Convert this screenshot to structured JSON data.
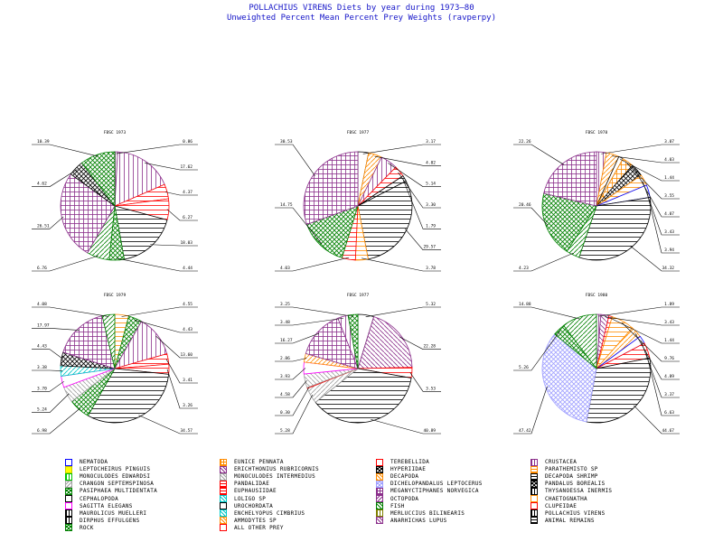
{
  "title": {
    "line1": "POLLACHIUS VIRENS Diets by year during 1973—80",
    "line2": "Unweighted Percent Mean Percent Prey Weights (ravperpy)"
  },
  "chart_data": [
    {
      "type": "pie",
      "title": "FBSC 1973",
      "slices": [
        {
          "category": "CRUSTACEA",
          "value": 0.86
        },
        {
          "category": "CRUSTACEA",
          "value": 17.62
        },
        {
          "category": "EUPHAUSIIDAE",
          "value": 4.37
        },
        {
          "category": "PANDALIDAE",
          "value": 6.27
        },
        {
          "category": "ANIMAL REMAINS",
          "value": 18.03
        },
        {
          "category": "ROCK",
          "value": 4.44
        },
        {
          "category": "FISH",
          "value": 6.76
        },
        {
          "category": "MEGANYCTIPHANES NORVEGICA",
          "value": 26.51
        },
        {
          "category": "PANDALUS BOREALIS",
          "value": 4.62
        },
        {
          "category": "PASIPHAEA MULTIDENTATA",
          "value": 10.39
        }
      ]
    },
    {
      "type": "pie",
      "title": "FBSC 1977",
      "slices": [
        {
          "category": "CEPHALOPODA",
          "value": 3.17
        },
        {
          "category": "DECAPODA",
          "value": 4.02
        },
        {
          "category": "CRUSTACEA",
          "value": 5.14
        },
        {
          "category": "EUPHAUSIIDAE",
          "value": 3.3
        },
        {
          "category": "DECAPODA SHRIMP",
          "value": 1.79
        },
        {
          "category": "ANIMAL REMAINS",
          "value": 29.57
        },
        {
          "category": "PARATHEMISTO SP",
          "value": 3.78
        },
        {
          "category": "PANDALIDAE",
          "value": 4.03
        },
        {
          "category": "PASIPHAEA MULTIDENTATA",
          "value": 14.75
        },
        {
          "category": "MEGANYCTIPHANES NORVEGICA",
          "value": 30.53
        }
      ]
    },
    {
      "type": "pie",
      "title": "FBSC 1978",
      "slices": [
        {
          "category": "CRUSTACEA",
          "value": 3.07
        },
        {
          "category": "DECAPODA",
          "value": 4.03
        },
        {
          "category": "CEPHALOPODA",
          "value": 1.44
        },
        {
          "category": "EUNICE PENNATA",
          "value": 3.55
        },
        {
          "category": "PANDALUS BOREALIS",
          "value": 4.07
        },
        {
          "category": "PARATHEMISTO SP",
          "value": 3.43
        },
        {
          "category": "NEMATODA",
          "value": 3.94
        },
        {
          "category": "ANIMAL REMAINS",
          "value": 34.32
        },
        {
          "category": "FISH",
          "value": 4.23
        },
        {
          "category": "PASIPHAEA MULTIDENTATA",
          "value": 20.46
        },
        {
          "category": "MEGANYCTIPHANES NORVEGICA",
          "value": 22.26
        }
      ]
    },
    {
      "type": "pie",
      "title": "FBSC 1979",
      "slices": [
        {
          "category": "PARATHEMISTO SP",
          "value": 4.55
        },
        {
          "category": "PASIPHAEA MULTIDENTATA",
          "value": 4.43
        },
        {
          "category": "CRUSTACEA",
          "value": 13.6
        },
        {
          "category": "EUPHAUSIIDAE",
          "value": 3.41
        },
        {
          "category": "PANDALIDAE",
          "value": 3.26
        },
        {
          "category": "ANIMAL REMAINS",
          "value": 34.57
        },
        {
          "category": "ROCK",
          "value": 6.98
        },
        {
          "category": "CRANGON SEPTEMSPINOSA",
          "value": 5.24
        },
        {
          "category": "SAGITTA ELEGANS",
          "value": 3.7
        },
        {
          "category": "LOLIGO SP",
          "value": 3.38
        },
        {
          "category": "PANDALUS BOREALIS",
          "value": 4.43
        },
        {
          "category": "MEGANYCTIPHANES NORVEGICA",
          "value": 17.97
        },
        {
          "category": "FISH",
          "value": 4.08
        }
      ]
    },
    {
      "type": "pie",
      "title": "FBSC 1977",
      "slices": [
        {
          "category": "PINGUIS",
          "value": 5.32
        },
        {
          "category": "OCTOPODA",
          "value": 22.28
        },
        {
          "category": "EUPHAUSIIDAE",
          "value": 3.53
        },
        {
          "category": "ANIMAL REMAINS",
          "value": 40.89
        },
        {
          "category": "MONOCULODES INTERMEDIUS",
          "value": 5.28
        },
        {
          "category": "PANDALIDAE",
          "value": 0.3
        },
        {
          "category": "CRANGON SEPTEMSPINOSA",
          "value": 4.58
        },
        {
          "category": "SAGITTA ELEGANS",
          "value": 3.93
        },
        {
          "category": "AMMODYTES SP",
          "value": 2.86
        },
        {
          "category": "MEGANYCTIPHANES NORVEGICA",
          "value": 16.27
        },
        {
          "category": "CRUSTACEA",
          "value": 3.48
        },
        {
          "category": "PASIPHAEA MULTIDENTATA",
          "value": 3.25
        }
      ]
    },
    {
      "type": "pie",
      "title": "FBSC 1980",
      "slices": [
        {
          "category": "CRUSTACEA",
          "value": 1.89
        },
        {
          "category": "OCTOPODA",
          "value": 3.43
        },
        {
          "category": "PANDALIDAE",
          "value": 1.44
        },
        {
          "category": "PARATHEMISTO SP",
          "value": 9.76
        },
        {
          "category": "DECAPODA",
          "value": 4.89
        },
        {
          "category": "NEMATODA",
          "value": 3.37
        },
        {
          "category": "EUPHAUSIIDAE",
          "value": 6.63
        },
        {
          "category": "ANIMAL REMAINS",
          "value": 44.67
        },
        {
          "category": "DICHELOPANDALUS LEPTOCERUS",
          "value": 47.42
        },
        {
          "category": "PASIPHAEA MULTIDENTATA",
          "value": 5.26
        },
        {
          "category": "FISH",
          "value": 14.88
        }
      ]
    }
  ],
  "legend": [
    {
      "label": "NEMATODA",
      "color": "#0000ff",
      "pattern": "solid-none"
    },
    {
      "label": "EUNICE PENNATA",
      "color": "#ff8c00",
      "pattern": "cross"
    },
    {
      "label": "TEREBELLIDA",
      "color": "#ff0000",
      "pattern": "none"
    },
    {
      "label": "CRUSTACEA",
      "color": "#8b2f8b",
      "pattern": "vert"
    },
    {
      "label": "LEPTOCHEIRUS PINGUIS",
      "color": "#ffff00",
      "pattern": "fill"
    },
    {
      "label": "ERICHTHONIUS RUBRICORNIS",
      "color": "#8b2f8b",
      "pattern": "diag"
    },
    {
      "label": "HYPERIIDAE",
      "color": "#000000",
      "pattern": "xcross"
    },
    {
      "label": "PARATHEMISTO SP",
      "color": "#ff8c00",
      "pattern": "horiz"
    },
    {
      "label": "MONOCULODES EDWARDSI",
      "color": "#00c800",
      "pattern": "vert"
    },
    {
      "label": "MONOCULODES INTERMEDIUS",
      "color": "#a0a0a0",
      "pattern": "diag"
    },
    {
      "label": "DECAPODA",
      "color": "#ff8c00",
      "pattern": "diag"
    },
    {
      "label": "DECAPODA SHRIMP",
      "color": "#000000",
      "pattern": "horiz"
    },
    {
      "label": "CRANGON SEPTEMSPINOSA",
      "color": "#a0a0a0",
      "pattern": "diag2"
    },
    {
      "label": "PANDALIDAE",
      "color": "#ff0000",
      "pattern": "horiz"
    },
    {
      "label": "DICHELOPANDALUS LEPTOCERUS",
      "color": "#a0a0ff",
      "pattern": "xcross"
    },
    {
      "label": "PANDALUS BOREALIS",
      "color": "#000000",
      "pattern": "xcross"
    },
    {
      "label": "PASIPHAEA MULTIDENTATA",
      "color": "#008000",
      "pattern": "xcross"
    },
    {
      "label": "EUPHAUSIIDAE",
      "color": "#ff0000",
      "pattern": "horiz"
    },
    {
      "label": "MEGANYCTIPHANES NORVEGICA",
      "color": "#8b2f8b",
      "pattern": "grid"
    },
    {
      "label": "THYSANOESSA INERMIS",
      "color": "#000000",
      "pattern": "vert"
    },
    {
      "label": "CEPHALOPODA",
      "color": "#000000",
      "pattern": "none"
    },
    {
      "label": "LOLIGO SP",
      "color": "#00c8c8",
      "pattern": "diag"
    },
    {
      "label": "OCTOPODA",
      "color": "#8b2f8b",
      "pattern": "diag2"
    },
    {
      "label": "CHAETOGNATHA",
      "color": "#ff8c00",
      "pattern": "none"
    },
    {
      "label": "SAGITTA ELEGANS",
      "color": "#ff00ff",
      "pattern": "none"
    },
    {
      "label": "UROCHORDATA",
      "color": "#000000",
      "pattern": "none"
    },
    {
      "label": "FISH",
      "color": "#008000",
      "pattern": "diag"
    },
    {
      "label": "CLUPEIDAE",
      "color": "#ff0000",
      "pattern": "none"
    },
    {
      "label": "MAUROLICUS MUELLERI",
      "color": "#000000",
      "pattern": "vert"
    },
    {
      "label": "ENCHELYOPUS CIMBRIUS",
      "color": "#00c8c8",
      "pattern": "diag"
    },
    {
      "label": "MERLUCCIUS BILINEARIS",
      "color": "#808000",
      "pattern": "vert"
    },
    {
      "label": "POLLACHIUS VIRENS",
      "color": "#000000",
      "pattern": "vert"
    },
    {
      "label": "DIRPHUS EFFULGENS",
      "color": "#000000",
      "pattern": "vert"
    },
    {
      "label": "AMMODYTES SP",
      "color": "#ff8c00",
      "pattern": "diag"
    },
    {
      "label": "ANARHICHAS LUPUS",
      "color": "#8b2f8b",
      "pattern": "diag"
    },
    {
      "label": "ANIMAL REMAINS",
      "color": "#000000",
      "pattern": "horiz"
    },
    {
      "label": "ROCK",
      "color": "#008000",
      "pattern": "xcross"
    },
    {
      "label": "ALL OTHER PREY",
      "color": "#ff0000",
      "pattern": "none"
    }
  ]
}
